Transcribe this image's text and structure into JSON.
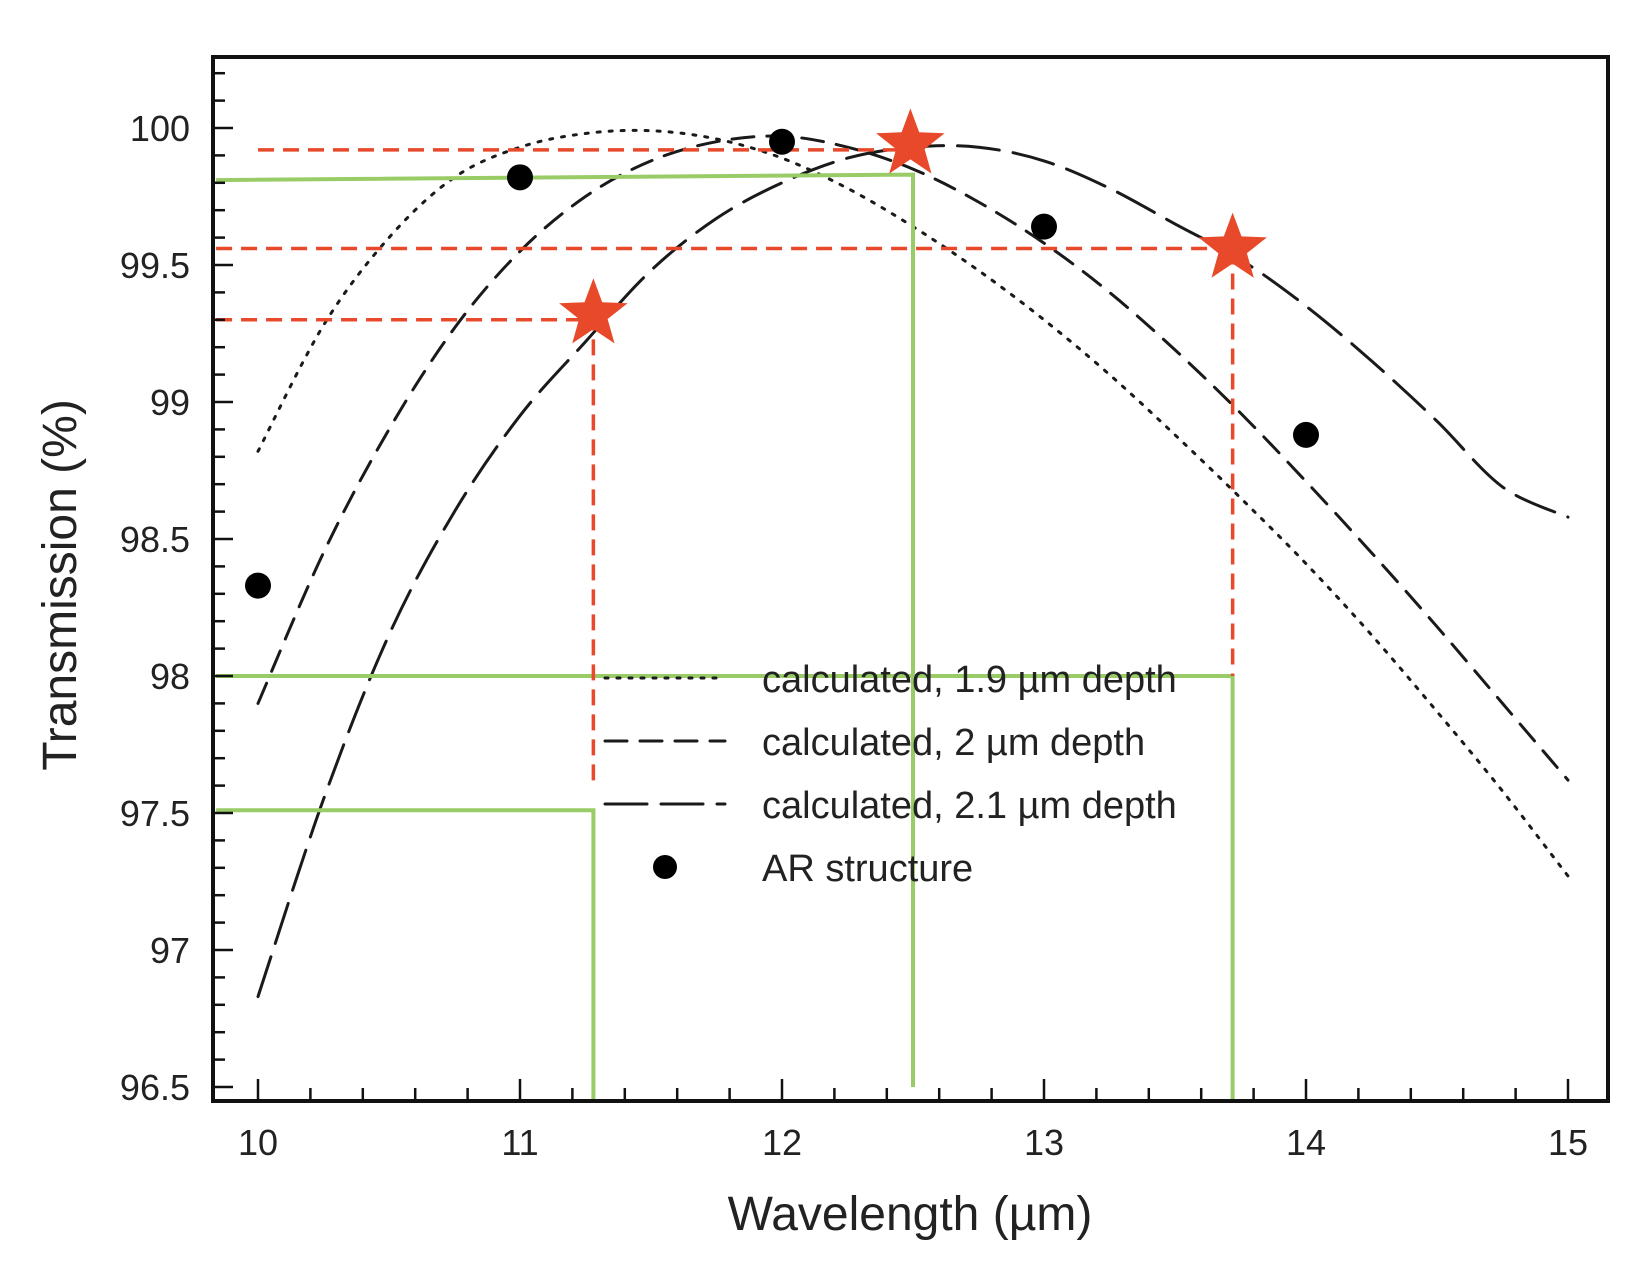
{
  "chart_data": {
    "type": "line",
    "title": "",
    "xlabel": "Wavelength (µm)",
    "ylabel": "Transmission (%)",
    "xlim": [
      10,
      15
    ],
    "ylim": [
      96.5,
      100
    ],
    "xticks": [
      "10",
      "11",
      "12",
      "13",
      "14",
      "15"
    ],
    "yticks": [
      "96.5",
      "97",
      "97.5",
      "98",
      "98.5",
      "99",
      "99.5",
      "100"
    ],
    "grid": false,
    "legend_position": "center",
    "series": [
      {
        "name": "calculated, 1.9 µm depth",
        "style": "dotted",
        "x": [
          10,
          10.25,
          10.5,
          10.75,
          11,
          11.25,
          11.5,
          11.75,
          12,
          12.25,
          12.5,
          12.75,
          13,
          13.25,
          13.5,
          13.75,
          14,
          14.25,
          14.5,
          14.75,
          15
        ],
        "y": [
          98.82,
          99.28,
          99.6,
          99.82,
          99.93,
          99.98,
          99.99,
          99.96,
          99.89,
          99.78,
          99.64,
          99.48,
          99.3,
          99.1,
          98.88,
          98.65,
          98.41,
          98.15,
          97.87,
          97.58,
          97.27
        ]
      },
      {
        "name": "calculated, 2 µm depth",
        "style": "dashed",
        "x": [
          10,
          10.25,
          10.5,
          10.75,
          11,
          11.25,
          11.5,
          11.75,
          12,
          12.25,
          12.5,
          12.75,
          13,
          13.25,
          13.5,
          13.75,
          14,
          14.25,
          14.5,
          14.75,
          15
        ],
        "y": [
          97.9,
          98.45,
          98.9,
          99.27,
          99.55,
          99.75,
          99.88,
          99.95,
          99.97,
          99.93,
          99.85,
          99.73,
          99.58,
          99.4,
          99.19,
          98.96,
          98.71,
          98.45,
          98.18,
          97.9,
          97.62
        ]
      },
      {
        "name": "calculated, 2.1 µm depth",
        "style": "long-dashed",
        "x": [
          10,
          10.25,
          10.5,
          10.75,
          11,
          11.25,
          11.5,
          11.75,
          12,
          12.25,
          12.5,
          12.75,
          13,
          13.25,
          13.5,
          13.75,
          14,
          14.25,
          14.5,
          14.75,
          15
        ],
        "y": [
          96.83,
          97.55,
          98.15,
          98.6,
          98.95,
          99.22,
          99.48,
          99.67,
          99.8,
          99.89,
          99.93,
          99.93,
          99.88,
          99.78,
          99.65,
          99.52,
          99.35,
          99.15,
          98.93,
          98.69,
          98.58
        ]
      },
      {
        "name": "AR structure",
        "style": "markers",
        "x": [
          10,
          11,
          12,
          13,
          14
        ],
        "y": [
          98.33,
          99.82,
          99.95,
          99.64,
          98.88
        ]
      }
    ],
    "overlays": {
      "stars": [
        {
          "x": 11.28,
          "y": 99.32
        },
        {
          "x": 12.49,
          "y": 99.94
        },
        {
          "x": 13.72,
          "y": 99.56
        }
      ],
      "red_dashed_verticals": [
        {
          "x": 11.28,
          "y_from": 97.6,
          "y_to": 99.32
        },
        {
          "x": 13.72,
          "y_from": 98.0,
          "y_to": 99.56
        }
      ],
      "red_dashed_horizontals": [
        {
          "y": 99.92,
          "x_from": 10,
          "x_to": 12.49
        },
        {
          "y": 99.56,
          "x_from": 9.84,
          "x_to": 13.72
        },
        {
          "y": 99.3,
          "x_from": 9.84,
          "x_to": 11.28
        }
      ],
      "green_paths": [
        [
          [
            9.84,
            99.81
          ],
          [
            12.5,
            99.83
          ],
          [
            12.5,
            96.5
          ]
        ],
        [
          [
            9.84,
            98.0
          ],
          [
            13.72,
            98.0
          ],
          [
            13.72,
            96.45
          ]
        ],
        [
          [
            9.84,
            97.51
          ],
          [
            11.28,
            97.51
          ],
          [
            11.28,
            96.45
          ]
        ]
      ]
    },
    "colors": {
      "curve": "#1a1a1a",
      "star": "#e8492a",
      "red_line": "#e8492a",
      "green_line": "#99cc66"
    }
  }
}
